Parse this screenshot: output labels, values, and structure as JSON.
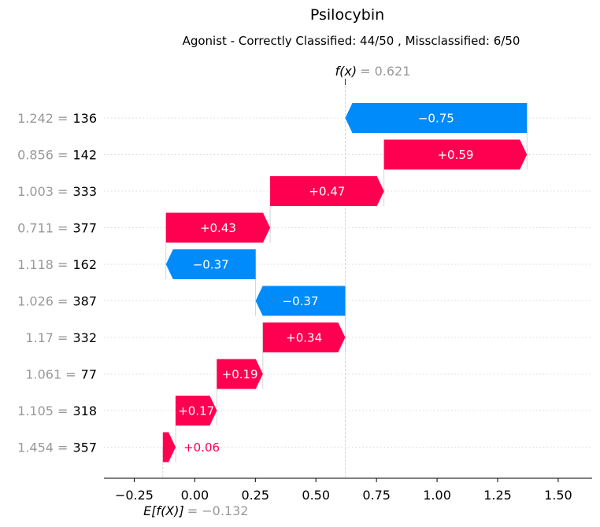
{
  "chart_data": {
    "type": "waterfall",
    "title": "Psilocybin",
    "subtitle": "Agonist - Correctly Classified: 44/50 , Missclassified: 6/50",
    "fx": {
      "label": "f(x)",
      "value_text": "= 0.621",
      "value": 0.621
    },
    "base": {
      "label": "E[f(X)]",
      "value_text": "= −0.132",
      "value": -0.132
    },
    "xlim": [
      -0.375,
      1.64
    ],
    "xticks": [
      {
        "value": -0.25,
        "label": "−0.25"
      },
      {
        "value": 0.0,
        "label": "0.00"
      },
      {
        "value": 0.25,
        "label": "0.25"
      },
      {
        "value": 0.5,
        "label": "0.50"
      },
      {
        "value": 0.75,
        "label": "0.75"
      },
      {
        "value": 1.0,
        "label": "1.00"
      },
      {
        "value": 1.25,
        "label": "1.25"
      },
      {
        "value": 1.5,
        "label": "1.50"
      }
    ],
    "grid": "horizontal dotted",
    "colors": {
      "positive": "#ff0051",
      "negative": "#008bfb",
      "muted": "#999999"
    },
    "features": [
      {
        "value_text": "1.242 =",
        "name": "136",
        "start": 1.371,
        "end": 0.621,
        "label": "−0.75",
        "label_position": "inside"
      },
      {
        "value_text": "0.856 =",
        "name": "142",
        "start": 0.781,
        "end": 1.371,
        "label": "+0.59",
        "label_position": "inside"
      },
      {
        "value_text": "1.003 =",
        "name": "333",
        "start": 0.311,
        "end": 0.781,
        "label": "+0.47",
        "label_position": "inside"
      },
      {
        "value_text": "0.711 =",
        "name": "377",
        "start": -0.119,
        "end": 0.311,
        "label": "+0.43",
        "label_position": "inside"
      },
      {
        "value_text": "1.118 =",
        "name": "162",
        "start": 0.251,
        "end": -0.119,
        "label": "−0.37",
        "label_position": "inside"
      },
      {
        "value_text": "1.026 =",
        "name": "387",
        "start": 0.621,
        "end": 0.251,
        "label": "−0.37",
        "label_position": "inside"
      },
      {
        "value_text": "1.17 =",
        "name": "332",
        "start": 0.281,
        "end": 0.621,
        "label": "+0.34",
        "label_position": "inside"
      },
      {
        "value_text": "1.061 =",
        "name": "77",
        "start": 0.091,
        "end": 0.281,
        "label": "+0.19",
        "label_position": "inside"
      },
      {
        "value_text": "1.105 =",
        "name": "318",
        "start": -0.079,
        "end": 0.091,
        "label": "+0.17",
        "label_position": "inside"
      },
      {
        "value_text": "1.454 =",
        "name": "357",
        "start": -0.132,
        "end": -0.079,
        "label": "+0.06",
        "label_position": "outside"
      }
    ]
  }
}
